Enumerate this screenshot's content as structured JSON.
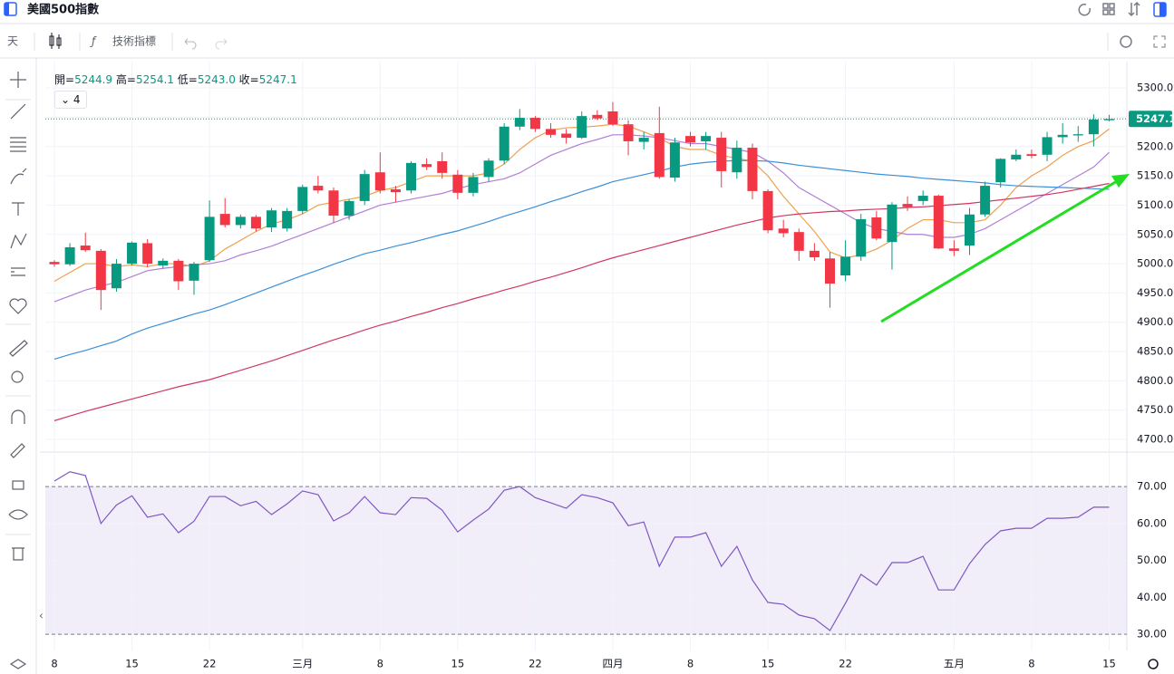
{
  "ui": {
    "interval": "天",
    "indicators_button": "技術指標",
    "indicator_count": 4
  },
  "chart_data": [
    {
      "type": "candlestick",
      "title": "美國500指數",
      "categories": [
        "8",
        null,
        null,
        null,
        null,
        "15",
        null,
        null,
        null,
        null,
        "22",
        null,
        null,
        null,
        null,
        null,
        "三月",
        null,
        null,
        null,
        null,
        "8",
        null,
        null,
        null,
        null,
        "15",
        null,
        null,
        null,
        null,
        "22",
        null,
        null,
        null,
        null,
        "四月",
        null,
        null,
        null,
        null,
        "8",
        null,
        null,
        null,
        null,
        "15",
        null,
        null,
        null,
        null,
        "22",
        null,
        null,
        null,
        null,
        null,
        null,
        "五月",
        null,
        null,
        null,
        null,
        "8",
        null,
        null,
        null,
        null,
        "15"
      ],
      "open": [
        5003,
        4999,
        5031,
        5022,
        4958,
        5000,
        5035,
        4997,
        5005,
        4971,
        5006,
        5085,
        5066,
        5080,
        5062,
        5060,
        5090,
        5133,
        5125,
        5082,
        5107,
        5156,
        5127,
        5125,
        5170,
        5175,
        5152,
        5121,
        5148,
        5176,
        5234,
        5249,
        5230,
        5222,
        5215,
        5254,
        5260,
        5238,
        5208,
        5223,
        5147,
        5218,
        5209,
        5215,
        5156,
        5198,
        5124,
        5060,
        5054,
        5022,
        5009,
        4980,
        5012,
        5079,
        5037,
        5102,
        5107,
        5116,
        5026,
        5031,
        5084,
        5139,
        5178,
        5187,
        5186,
        5216,
        5219,
        5221,
        5244.9
      ],
      "high": [
        5006,
        5035,
        5053,
        5025,
        5008,
        5038,
        5042,
        5009,
        5008,
        5003,
        5108,
        5112,
        5084,
        5083,
        5095,
        5095,
        5135,
        5150,
        5130,
        5110,
        5160,
        5190,
        5133,
        5175,
        5180,
        5190,
        5160,
        5155,
        5180,
        5240,
        5264,
        5252,
        5240,
        5230,
        5260,
        5262,
        5276,
        5245,
        5225,
        5268,
        5215,
        5225,
        5225,
        5225,
        5210,
        5205,
        5127,
        5075,
        5060,
        5035,
        5020,
        5040,
        5085,
        5090,
        5105,
        5115,
        5125,
        5118,
        5040,
        5095,
        5140,
        5180,
        5195,
        5195,
        5225,
        5240,
        5235,
        5255,
        5254.1
      ],
      "low": [
        4995,
        4996,
        5020,
        4921,
        4952,
        4997,
        4994,
        4992,
        4955,
        4947,
        5003,
        5062,
        5060,
        5055,
        5054,
        5055,
        5085,
        5120,
        5070,
        5075,
        5100,
        5120,
        5105,
        5120,
        5160,
        5145,
        5110,
        5115,
        5140,
        5170,
        5228,
        5225,
        5215,
        5205,
        5213,
        5245,
        5235,
        5185,
        5195,
        5145,
        5140,
        5200,
        5195,
        5130,
        5145,
        5110,
        5052,
        5045,
        5005,
        5005,
        4925,
        4970,
        5005,
        5040,
        4990,
        5090,
        5100,
        5025,
        5013,
        5015,
        5080,
        5130,
        5175,
        5180,
        5175,
        5205,
        5208,
        5200,
        5243
      ],
      "close": [
        4999,
        5028,
        5023,
        4955,
        5000,
        5036,
        5000,
        5005,
        4970,
        5000,
        5080,
        5066,
        5080,
        5060,
        5091,
        5090,
        5131,
        5125,
        5082,
        5107,
        5153,
        5125,
        5122,
        5172,
        5165,
        5155,
        5121,
        5148,
        5176,
        5234,
        5249,
        5230,
        5220,
        5215,
        5252,
        5248,
        5238,
        5209,
        5215,
        5148,
        5207,
        5207,
        5218,
        5158,
        5198,
        5124,
        5057,
        5052,
        5022,
        5011,
        4966,
        5012,
        5076,
        5043,
        5101,
        5097,
        5116,
        5026,
        5022,
        5084,
        5133,
        5179,
        5186,
        5184,
        5216,
        5220,
        5221,
        5246,
        5247.1
      ],
      "up_color": "#089981",
      "down_color": "#f23645",
      "series": [
        {
          "color": "#f0a04b",
          "values": [
            4970,
            4985,
            5000,
            5000,
            4995,
            4998,
            4995,
            5000,
            5000,
            4995,
            5005,
            5025,
            5040,
            5055,
            5068,
            5075,
            5085,
            5100,
            5105,
            5110,
            5115,
            5125,
            5130,
            5140,
            5150,
            5150,
            5150,
            5150,
            5155,
            5170,
            5195,
            5215,
            5228,
            5232,
            5233,
            5235,
            5238,
            5235,
            5225,
            5215,
            5200,
            5195,
            5195,
            5185,
            5180,
            5175,
            5150,
            5115,
            5085,
            5055,
            5020,
            5010,
            5015,
            5025,
            5040,
            5060,
            5075,
            5075,
            5070,
            5070,
            5075,
            5100,
            5130,
            5150,
            5165,
            5185,
            5200,
            5210,
            5230
          ]
        },
        {
          "color": "#b07fd6",
          "values": [
            4935,
            4945,
            4955,
            4962,
            4968,
            4978,
            4988,
            4992,
            4995,
            4998,
            5000,
            5005,
            5015,
            5022,
            5030,
            5040,
            5050,
            5060,
            5070,
            5080,
            5090,
            5100,
            5105,
            5110,
            5115,
            5120,
            5128,
            5135,
            5140,
            5145,
            5155,
            5170,
            5185,
            5195,
            5205,
            5212,
            5220,
            5220,
            5218,
            5215,
            5210,
            5205,
            5205,
            5200,
            5195,
            5190,
            5175,
            5155,
            5130,
            5115,
            5100,
            5085,
            5070,
            5060,
            5055,
            5050,
            5050,
            5045,
            5045,
            5050,
            5060,
            5075,
            5090,
            5105,
            5120,
            5135,
            5150,
            5165,
            5190
          ]
        },
        {
          "color": "#3b8fd9",
          "values": [
            4837,
            4845,
            4852,
            4860,
            4868,
            4880,
            4890,
            4898,
            4906,
            4914,
            4921,
            4930,
            4940,
            4950,
            4960,
            4970,
            4980,
            4989,
            4999,
            5008,
            5017,
            5023,
            5030,
            5036,
            5043,
            5050,
            5056,
            5064,
            5072,
            5081,
            5089,
            5097,
            5106,
            5114,
            5123,
            5131,
            5140,
            5146,
            5152,
            5158,
            5165,
            5170,
            5173,
            5175,
            5176,
            5176,
            5175,
            5172,
            5168,
            5165,
            5162,
            5159,
            5156,
            5153,
            5151,
            5149,
            5146,
            5144,
            5142,
            5140,
            5138,
            5135,
            5133,
            5132,
            5131,
            5130,
            5129,
            5128,
            5127
          ]
        },
        {
          "color": "#d2365f",
          "values": [
            4732,
            4740,
            4748,
            4755,
            4762,
            4769,
            4776,
            4783,
            4790,
            4796,
            4802,
            4810,
            4818,
            4826,
            4834,
            4843,
            4852,
            4861,
            4870,
            4878,
            4887,
            4895,
            4902,
            4910,
            4917,
            4925,
            4932,
            4940,
            4947,
            4955,
            4962,
            4970,
            4977,
            4985,
            4993,
            5002,
            5010,
            5017,
            5024,
            5031,
            5038,
            5045,
            5052,
            5059,
            5066,
            5072,
            5078,
            5082,
            5085,
            5087,
            5089,
            5090,
            5092,
            5093,
            5094,
            5096,
            5097,
            5099,
            5101,
            5103,
            5106,
            5109,
            5112,
            5115,
            5118,
            5122,
            5127,
            5132,
            5137
          ]
        }
      ],
      "ohlc_legend": [
        {
          "label": "開=",
          "value": "5244.9"
        },
        {
          "label": "高=",
          "value": "5254.1"
        },
        {
          "label": "低=",
          "value": "5243.0"
        },
        {
          "label": "收=",
          "value": "5247.1"
        }
      ],
      "last_price": {
        "value": 5247.1,
        "label": "5247.1"
      },
      "ylim": [
        4680,
        5345
      ],
      "yticks": [
        {
          "value": 4700,
          "label": "4700.0"
        },
        {
          "value": 4750,
          "label": "4750.0"
        },
        {
          "value": 4800,
          "label": "4800.0"
        },
        {
          "value": 4850,
          "label": "4850.0"
        },
        {
          "value": 4900,
          "label": "4900.0"
        },
        {
          "value": 4950,
          "label": "4950.0"
        },
        {
          "value": 5000,
          "label": "5000.0"
        },
        {
          "value": 5050,
          "label": "5050.0"
        },
        {
          "value": 5100,
          "label": "5100.0"
        },
        {
          "value": 5150,
          "label": "5150.0"
        },
        {
          "value": 5200,
          "label": "5200.0"
        },
        {
          "value": 5250,
          "label": "5250.0"
        },
        {
          "value": 5300,
          "label": "5300.0"
        }
      ],
      "grid": true
    },
    {
      "type": "line",
      "color": "#7e57c2",
      "values": [
        71.5,
        74,
        73,
        60,
        65,
        67.5,
        61.7,
        62.6,
        57.5,
        60.6,
        67.3,
        67.3,
        64.8,
        66,
        62.4,
        65.3,
        68.8,
        67.8,
        60.7,
        62.9,
        67.3,
        62.9,
        62.4,
        67,
        66.8,
        63.6,
        57.7,
        60.9,
        63.9,
        69,
        70,
        67,
        65.6,
        64.1,
        67.8,
        67,
        65.6,
        59.4,
        60.4,
        48.4,
        56.3,
        56.3,
        57.5,
        48.4,
        53.8,
        44.7,
        38.6,
        38.1,
        35.2,
        34.2,
        31,
        38.4,
        46.2,
        43.3,
        49.4,
        49.4,
        51.1,
        42,
        42,
        49.1,
        54.3,
        58,
        58.7,
        58.7,
        61.4,
        61.4,
        61.7,
        64.4,
        64.4
      ],
      "band": [
        30,
        70
      ],
      "band_color": "#7e57c2",
      "ylim": [
        25.6,
        79.1
      ],
      "yticks": [
        {
          "value": 30,
          "label": "30.00"
        },
        {
          "value": 40,
          "label": "40.00"
        },
        {
          "value": 50,
          "label": "50.00"
        },
        {
          "value": 60,
          "label": "60.00"
        },
        {
          "value": 70,
          "label": "70.00"
        }
      ],
      "grid": true
    }
  ]
}
